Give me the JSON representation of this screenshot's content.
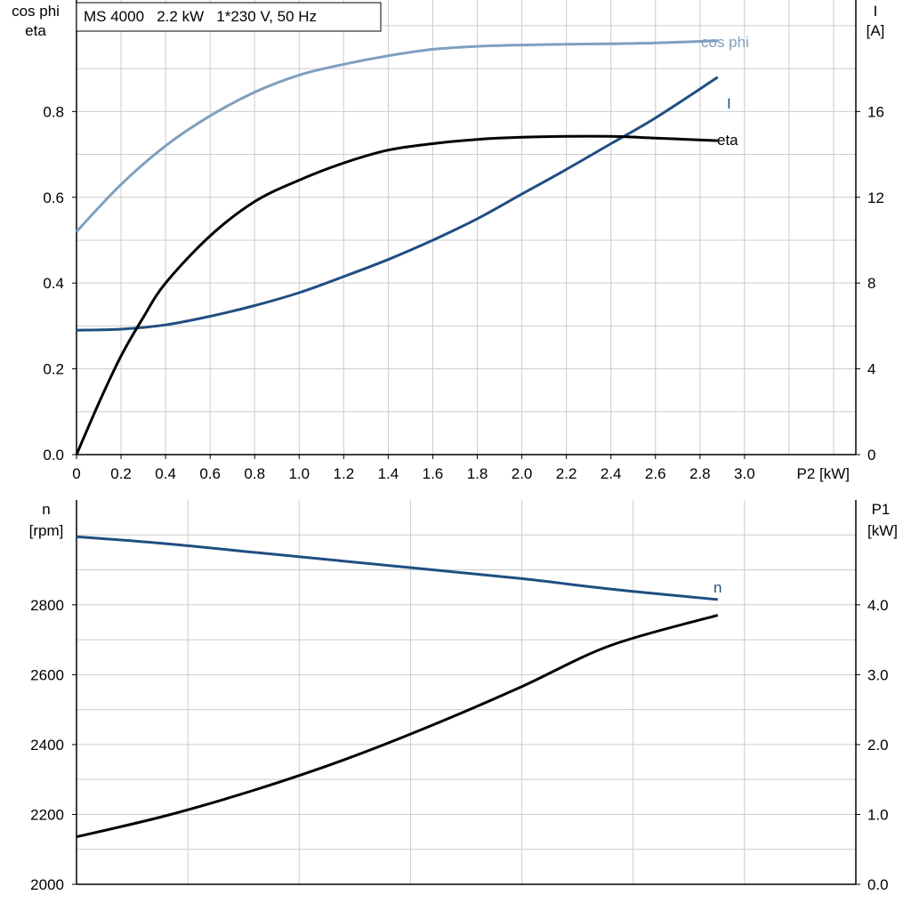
{
  "info_box": "MS 4000   2.2 kW   1*230 V, 50 Hz",
  "colors": {
    "cos_phi": "#7f9fbf",
    "current": "#1f4e82",
    "eta": "#000000",
    "speed": "#1f4e82",
    "p1": "#000000",
    "grid": "#cccccc",
    "axis": "#000000"
  },
  "chart_data": [
    {
      "type": "line",
      "xlabel": "P2 [kW]",
      "x_ticks": [
        "0",
        "0.2",
        "0.4",
        "0.6",
        "0.8",
        "1.0",
        "1.2",
        "1.4",
        "1.6",
        "1.8",
        "2.0",
        "2.2",
        "2.4",
        "2.6",
        "2.8",
        "3.0"
      ],
      "xlim": [
        0,
        3.5
      ],
      "left_axis": {
        "label_line1": "cos phi",
        "label_line2": "eta",
        "ticks": [
          "0.0",
          "0.2",
          "0.4",
          "0.6",
          "0.8"
        ],
        "ylim": [
          0,
          1.06
        ]
      },
      "right_axis": {
        "label_line1": "I",
        "label_line2": "[A]",
        "ticks": [
          "0",
          "4",
          "8",
          "12",
          "16"
        ],
        "ylim": [
          0,
          21.2
        ]
      },
      "series": [
        {
          "name": "cos phi",
          "axis": "left",
          "x": [
            0,
            0.2,
            0.4,
            0.6,
            0.8,
            1.0,
            1.2,
            1.4,
            1.6,
            1.8,
            2.0,
            2.2,
            2.4,
            2.6,
            2.88
          ],
          "y": [
            0.52,
            0.63,
            0.72,
            0.79,
            0.845,
            0.885,
            0.91,
            0.93,
            0.945,
            0.952,
            0.955,
            0.957,
            0.958,
            0.96,
            0.965
          ]
        },
        {
          "name": "I",
          "axis": "right",
          "x": [
            0,
            0.2,
            0.4,
            0.6,
            0.8,
            1.0,
            1.2,
            1.4,
            1.6,
            1.8,
            2.0,
            2.2,
            2.4,
            2.6,
            2.88
          ],
          "y": [
            5.8,
            5.85,
            6.05,
            6.45,
            6.95,
            7.55,
            8.3,
            9.1,
            10.0,
            11.0,
            12.15,
            13.3,
            14.5,
            15.7,
            17.6
          ]
        },
        {
          "name": "eta",
          "axis": "left",
          "x": [
            0,
            0.1,
            0.2,
            0.3,
            0.4,
            0.6,
            0.8,
            1.0,
            1.2,
            1.4,
            1.6,
            1.8,
            2.0,
            2.2,
            2.4,
            2.6,
            2.88
          ],
          "y": [
            0.0,
            0.12,
            0.23,
            0.32,
            0.4,
            0.51,
            0.59,
            0.64,
            0.68,
            0.71,
            0.725,
            0.735,
            0.74,
            0.742,
            0.742,
            0.738,
            0.732
          ]
        }
      ]
    },
    {
      "type": "line",
      "xlim": [
        0,
        3.5
      ],
      "left_axis": {
        "label_line1": "n",
        "label_line2": "[rpm]",
        "ticks": [
          "2000",
          "2200",
          "2400",
          "2600",
          "2800"
        ],
        "ylim": [
          2000,
          3100
        ]
      },
      "right_axis": {
        "label_line1": "P1",
        "label_line2": "[kW]",
        "ticks": [
          "0.0",
          "1.0",
          "2.0",
          "3.0",
          "4.0"
        ],
        "ylim": [
          0,
          5.5
        ]
      },
      "series": [
        {
          "name": "n",
          "axis": "left",
          "x": [
            0,
            0.4,
            0.8,
            1.2,
            1.6,
            2.0,
            2.4,
            2.88
          ],
          "y": [
            2995,
            2975,
            2950,
            2925,
            2900,
            2875,
            2845,
            2815
          ]
        },
        {
          "name": "P1",
          "axis": "right",
          "x": [
            0,
            0.4,
            0.8,
            1.2,
            1.6,
            2.0,
            2.4,
            2.88
          ],
          "y": [
            0.68,
            0.98,
            1.35,
            1.78,
            2.28,
            2.83,
            3.42,
            3.85
          ]
        }
      ]
    }
  ]
}
